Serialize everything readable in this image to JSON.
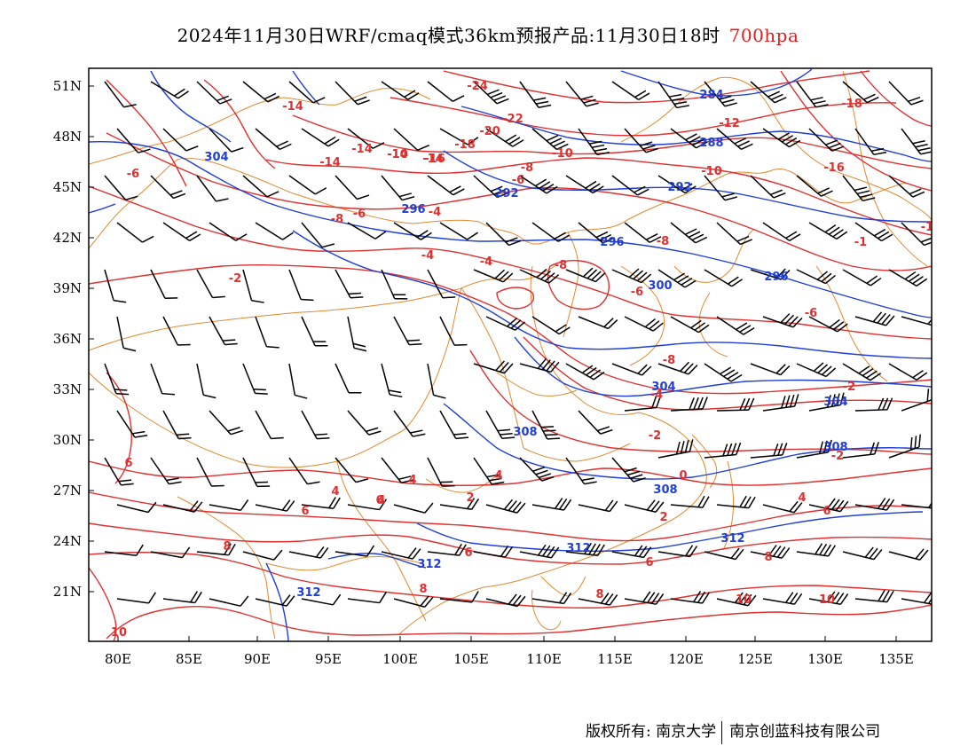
{
  "header": {
    "title": "2024年11月30日WRF/cmaq模式36km预报产品:11月30日18时",
    "level": "700hpa"
  },
  "map": {
    "lat_labels": [
      "51N",
      "48N",
      "45N",
      "42N",
      "39N",
      "36N",
      "33N",
      "30N",
      "27N",
      "24N",
      "21N"
    ],
    "lon_labels": [
      "80E",
      "85E",
      "90E",
      "95E",
      "100E",
      "105E",
      "110E",
      "115E",
      "120E",
      "125E",
      "130E",
      "135E"
    ],
    "colors": {
      "temperature": "#e03030",
      "height": "#1f3fd8",
      "border": "#e08a30",
      "wind": "#000000"
    },
    "temperature_labels": [
      {
        "text": "-24"
      },
      {
        "text": "-22"
      },
      {
        "text": "-20"
      },
      {
        "text": "-18"
      },
      {
        "text": "-16"
      },
      {
        "text": "-14"
      },
      {
        "text": "-14"
      },
      {
        "text": "-14"
      },
      {
        "text": "-14"
      },
      {
        "text": "-14"
      },
      {
        "text": "-12"
      },
      {
        "text": "-10"
      },
      {
        "text": "-10"
      },
      {
        "text": "-10"
      },
      {
        "text": "-18"
      },
      {
        "text": "-16"
      },
      {
        "text": "-8"
      },
      {
        "text": "-8"
      },
      {
        "text": "-8"
      },
      {
        "text": "-8"
      },
      {
        "text": "-6"
      },
      {
        "text": "-6"
      },
      {
        "text": "-6"
      },
      {
        "text": "-6"
      },
      {
        "text": "-6"
      },
      {
        "text": "-4"
      },
      {
        "text": "-4"
      },
      {
        "text": "-4"
      },
      {
        "text": "-4"
      },
      {
        "text": "-2"
      },
      {
        "text": "-2"
      },
      {
        "text": "-2"
      },
      {
        "text": "-2"
      },
      {
        "text": "-1"
      },
      {
        "text": "-1"
      },
      {
        "text": "-8"
      },
      {
        "text": "0"
      },
      {
        "text": "2"
      },
      {
        "text": "2"
      },
      {
        "text": "4"
      },
      {
        "text": "4"
      },
      {
        "text": "4"
      },
      {
        "text": "4"
      },
      {
        "text": "4"
      },
      {
        "text": "6"
      },
      {
        "text": "6"
      },
      {
        "text": "6"
      },
      {
        "text": "6"
      },
      {
        "text": "6"
      },
      {
        "text": "6"
      },
      {
        "text": "8"
      },
      {
        "text": "8"
      },
      {
        "text": "8"
      },
      {
        "text": "8"
      },
      {
        "text": "10"
      },
      {
        "text": "10"
      },
      {
        "text": "10"
      }
    ],
    "height_labels": [
      {
        "text": "284"
      },
      {
        "text": "288"
      },
      {
        "text": "292"
      },
      {
        "text": "292"
      },
      {
        "text": "296"
      },
      {
        "text": "296"
      },
      {
        "text": "296"
      },
      {
        "text": "300"
      },
      {
        "text": "304"
      },
      {
        "text": "304"
      },
      {
        "text": "304"
      },
      {
        "text": "308"
      },
      {
        "text": "308"
      },
      {
        "text": "308"
      },
      {
        "text": "312"
      },
      {
        "text": "312"
      },
      {
        "text": "312"
      },
      {
        "text": "312"
      }
    ]
  },
  "footer": {
    "copyright_left": "版权所有: 南京大学",
    "copyright_right": "南京创蓝科技有限公司"
  }
}
